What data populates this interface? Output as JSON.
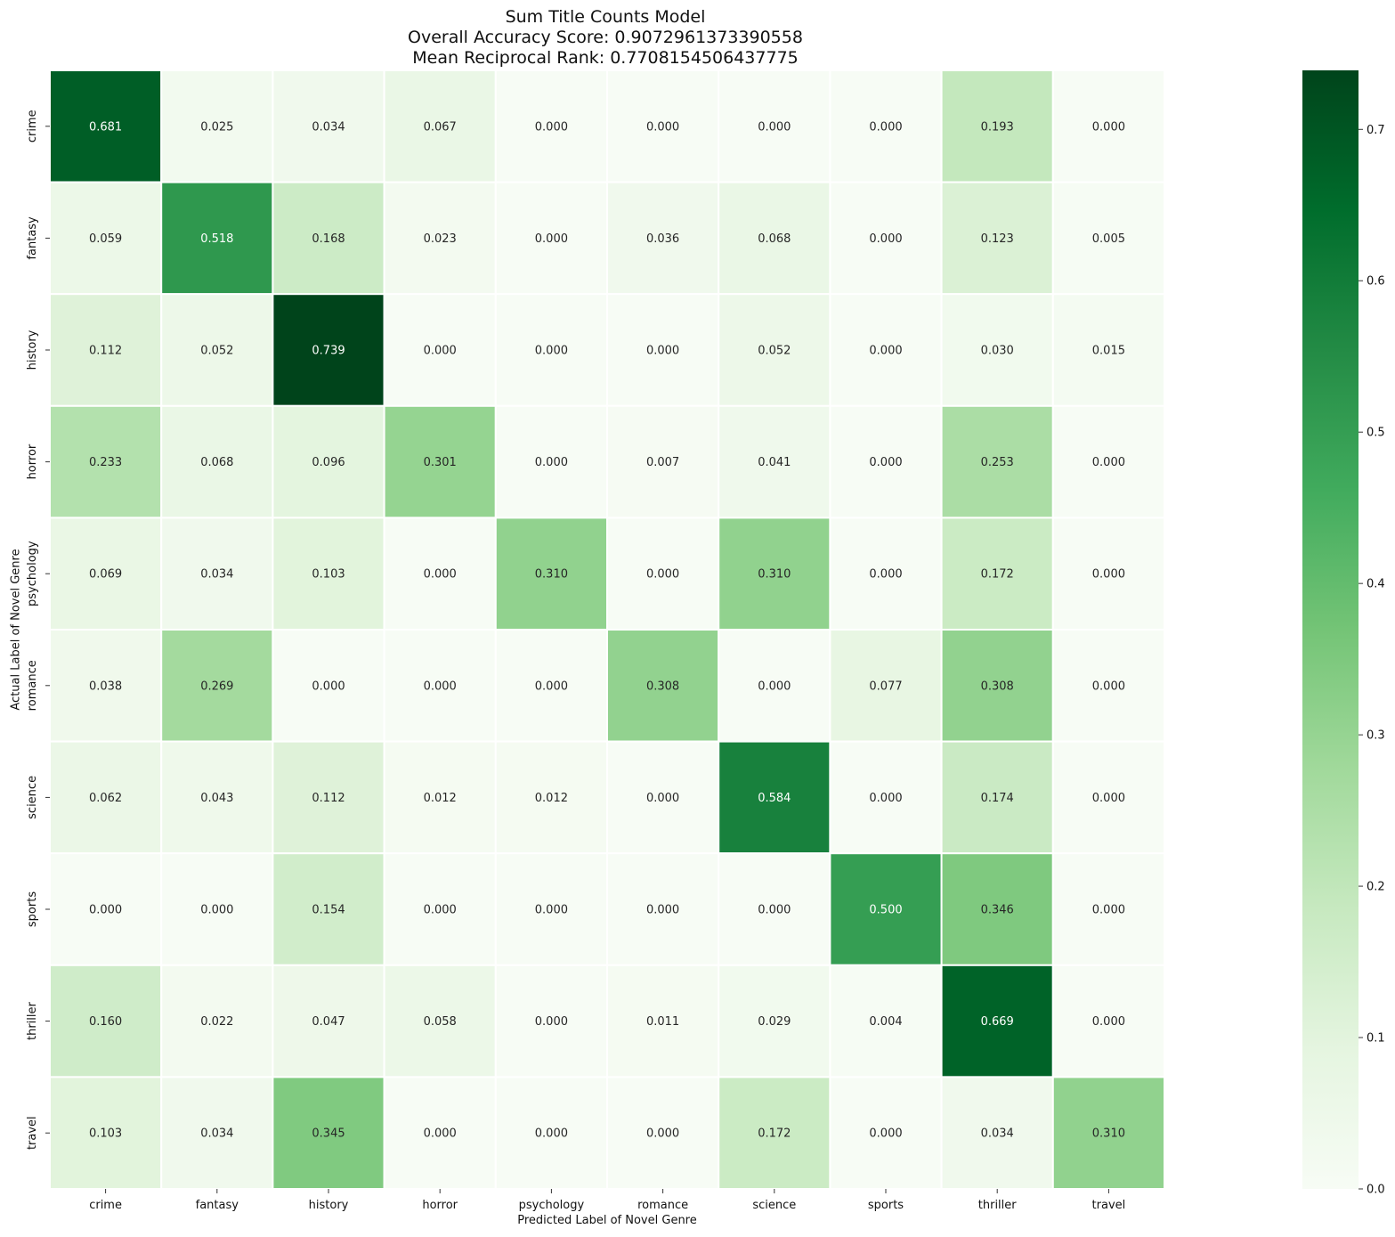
{
  "chart_data": {
    "type": "heatmap",
    "title_lines": [
      "Sum Title Counts Model",
      "Overall Accuracy Score: 0.9072961373390558",
      "Mean Reciprocal Rank: 0.7708154506437775"
    ],
    "xlabel": "Predicted Label of Novel Genre",
    "ylabel": "Actual Label of Novel Genre",
    "x_categories": [
      "crime",
      "fantasy",
      "history",
      "horror",
      "psychology",
      "romance",
      "science",
      "sports",
      "thriller",
      "travel"
    ],
    "y_categories": [
      "crime",
      "fantasy",
      "history",
      "horror",
      "psychology",
      "romance",
      "science",
      "sports",
      "thriller",
      "travel"
    ],
    "values": [
      [
        0.681,
        0.025,
        0.034,
        0.067,
        0.0,
        0.0,
        0.0,
        0.0,
        0.193,
        0.0
      ],
      [
        0.059,
        0.518,
        0.168,
        0.023,
        0.0,
        0.036,
        0.068,
        0.0,
        0.123,
        0.005
      ],
      [
        0.112,
        0.052,
        0.739,
        0.0,
        0.0,
        0.0,
        0.052,
        0.0,
        0.03,
        0.015
      ],
      [
        0.233,
        0.068,
        0.096,
        0.301,
        0.0,
        0.007,
        0.041,
        0.0,
        0.253,
        0.0
      ],
      [
        0.069,
        0.034,
        0.103,
        0.0,
        0.31,
        0.0,
        0.31,
        0.0,
        0.172,
        0.0
      ],
      [
        0.038,
        0.269,
        0.0,
        0.0,
        0.0,
        0.308,
        0.0,
        0.077,
        0.308,
        0.0
      ],
      [
        0.062,
        0.043,
        0.112,
        0.012,
        0.012,
        0.0,
        0.584,
        0.0,
        0.174,
        0.0
      ],
      [
        0.0,
        0.0,
        0.154,
        0.0,
        0.0,
        0.0,
        0.0,
        0.5,
        0.346,
        0.0
      ],
      [
        0.16,
        0.022,
        0.047,
        0.058,
        0.0,
        0.011,
        0.029,
        0.004,
        0.669,
        0.0
      ],
      [
        0.103,
        0.034,
        0.345,
        0.0,
        0.0,
        0.0,
        0.172,
        0.0,
        0.034,
        0.31
      ]
    ],
    "value_format": "3 decimals",
    "colorscale": "Greens",
    "vmin": 0.0,
    "vmax": 0.739,
    "colorbar_ticks": [
      "0.0",
      "0.1",
      "0.2",
      "0.3",
      "0.4",
      "0.5",
      "0.6",
      "0.7"
    ],
    "grid": false,
    "cell_border_color": "#ffffff"
  }
}
